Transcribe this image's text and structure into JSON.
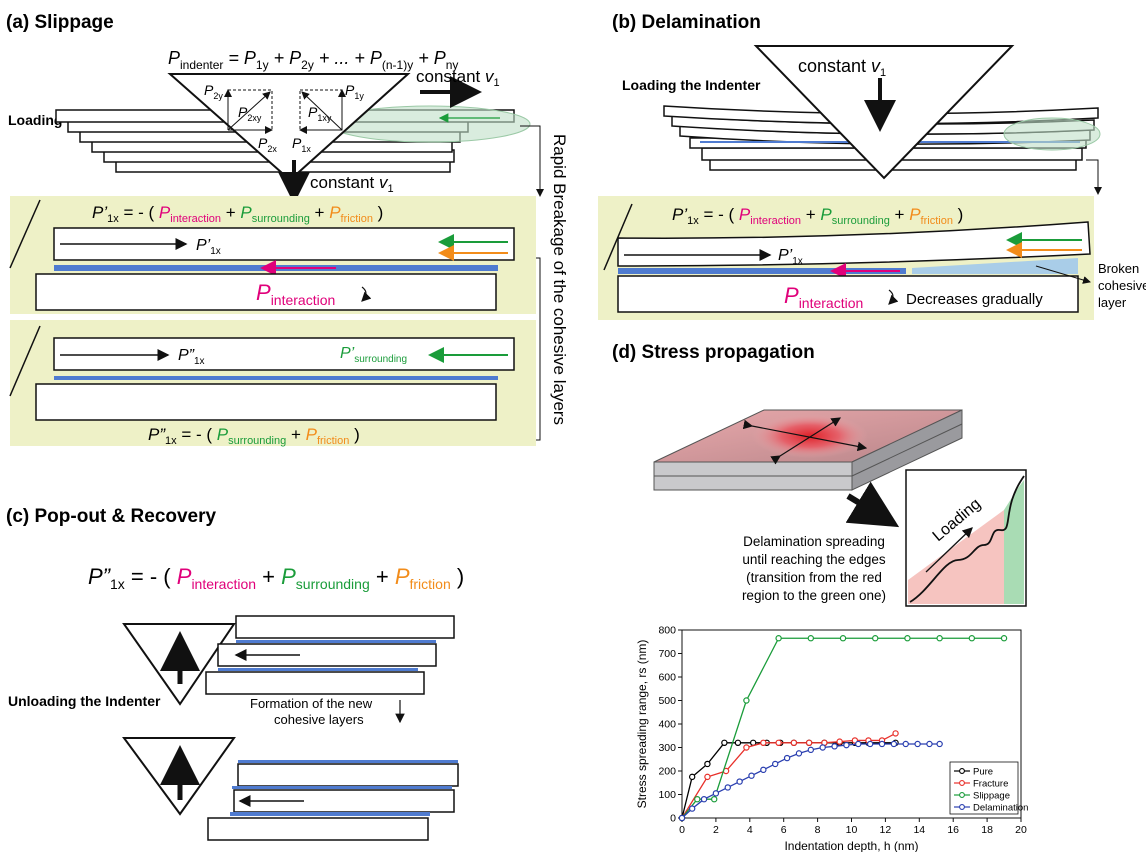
{
  "panels": {
    "a": {
      "title": "(a) Slippage",
      "loading_label": "Loading the Indenter",
      "eq_top": "P_indenter = P_1y + P_2y + ... + P_(n-1)y + P_ny",
      "force_labels": [
        "P2y",
        "P2xy",
        "P2x",
        "P1x",
        "P1xy",
        "P1y"
      ],
      "velocity_label": "constant v1",
      "side_label": "Rapid Breakage of the cohesive layers",
      "eq1": "P'1x = - ( Pinteraction + Psurrounding + Pfriction )",
      "eq2": "P\"1x = - ( Psurrounding + Pfriction )",
      "row1_label": "P'1x",
      "interaction_label": "Pinteraction",
      "row2_label": "P\"1x",
      "surrounding_label": "P'surrounding"
    },
    "b": {
      "title": "(b) Delamination",
      "loading_label": "Loading the Indenter",
      "velocity_label": "constant v1",
      "eq1": "P'1x = - ( Pinteraction + Psurrounding + Pfriction )",
      "row_label": "P'1x",
      "interaction_label": "Pinteraction",
      "decrease_label": "Decreases gradually",
      "broken_label": [
        "Broken",
        "cohesive",
        "layer"
      ]
    },
    "c": {
      "title": "(c) Pop-out & Recovery",
      "eq": "P\"1x = - ( Pinteraction + Psurrounding + Pfriction )",
      "unloading_label": "Unloading the Indenter",
      "formation_label": [
        "Formation of the new",
        "cohesive layers"
      ]
    },
    "d": {
      "title": "(d) Stress propagation",
      "loading_word": "Loading",
      "caption": [
        "Delamination spreading",
        "until reaching the edges",
        "(transition from the red",
        "region to the green one)"
      ]
    }
  },
  "chart_data": {
    "type": "line",
    "xlabel": "Indentation depth, h (nm)",
    "ylabel": "Stress spreading range, rs (nm)",
    "xlim": [
      0,
      20
    ],
    "ylim": [
      0,
      800
    ],
    "xticks": [
      0,
      2,
      4,
      6,
      8,
      10,
      12,
      14,
      16,
      18,
      20
    ],
    "yticks": [
      0,
      100,
      200,
      300,
      400,
      500,
      600,
      700,
      800
    ],
    "legend_position": "bottom-right",
    "series": [
      {
        "name": "Pure",
        "color": "#000000",
        "x": [
          0,
          0.6,
          1.5,
          2.5,
          3.3,
          4.2,
          5.0,
          5.8,
          6.6,
          7.5,
          8.4,
          9.3,
          10.2,
          11.0,
          11.8,
          12.6
        ],
        "y": [
          0,
          175,
          230,
          320,
          320,
          320,
          320,
          320,
          320,
          320,
          320,
          320,
          320,
          320,
          320,
          320
        ]
      },
      {
        "name": "Fracture",
        "color": "#e8302a",
        "x": [
          0,
          1.5,
          2.6,
          3.8,
          4.8,
          5.7,
          6.6,
          7.5,
          8.4,
          9.3,
          10.2,
          11.0,
          11.8,
          12.6
        ],
        "y": [
          0,
          175,
          200,
          300,
          320,
          320,
          320,
          320,
          320,
          325,
          330,
          330,
          330,
          360
        ]
      },
      {
        "name": "Slippage",
        "color": "#1a9c3a",
        "x": [
          0,
          0.9,
          1.9,
          3.8,
          5.7,
          7.6,
          9.5,
          11.4,
          13.3,
          15.2,
          17.1,
          19.0
        ],
        "y": [
          0,
          80,
          80,
          500,
          765,
          765,
          765,
          765,
          765,
          765,
          765,
          765
        ]
      },
      {
        "name": "Delamination",
        "color": "#2a3fb0",
        "x": [
          0,
          0.6,
          1.3,
          2.0,
          2.7,
          3.4,
          4.1,
          4.8,
          5.5,
          6.2,
          6.9,
          7.6,
          8.3,
          9.0,
          9.7,
          10.4,
          11.1,
          11.8,
          12.5,
          13.2,
          13.9,
          14.6,
          15.2
        ],
        "y": [
          0,
          40,
          80,
          105,
          130,
          155,
          180,
          205,
          230,
          255,
          275,
          290,
          300,
          305,
          310,
          315,
          315,
          315,
          315,
          315,
          315,
          315,
          315
        ]
      }
    ]
  }
}
